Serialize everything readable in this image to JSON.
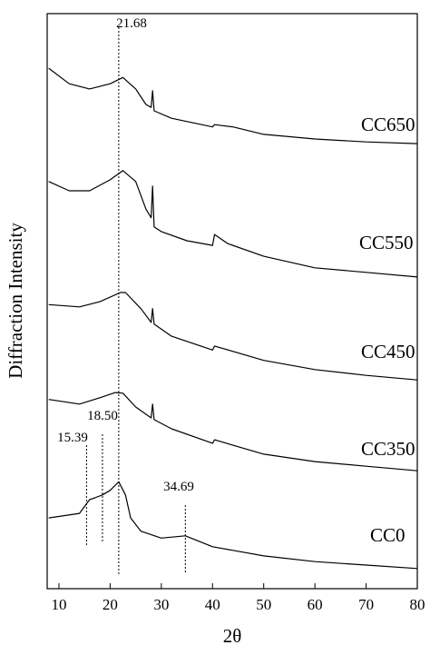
{
  "chart_data": {
    "type": "line",
    "x_label": "2θ",
    "y_label": "Diffraction Intensity",
    "xlim": [
      7.7,
      80
    ],
    "ylim": [
      0,
      100
    ],
    "xticks": [
      10,
      20,
      30,
      40,
      50,
      60,
      70,
      80
    ],
    "color": "#000000",
    "series": [
      {
        "name": "CC650",
        "x": [
          8,
          12,
          16,
          20,
          22.5,
          25,
          27,
          28,
          28.3,
          28.6,
          32,
          40,
          40.4,
          44,
          50,
          60,
          70,
          80
        ],
        "values": [
          90.5,
          87.8,
          86.9,
          87.8,
          88.9,
          86.9,
          84.2,
          83.7,
          86.6,
          83.1,
          81.8,
          80.3,
          80.7,
          80.3,
          79.0,
          78.2,
          77.7,
          77.4
        ]
      },
      {
        "name": "CC550",
        "x": [
          8,
          12,
          16,
          20,
          22.5,
          25,
          27,
          28,
          28.3,
          28.6,
          30,
          35,
          40,
          40.4,
          43,
          50,
          60,
          70,
          80
        ],
        "values": [
          70.8,
          69.2,
          69.2,
          71.1,
          72.7,
          70.8,
          66.0,
          64.5,
          70.0,
          62.9,
          62.1,
          60.5,
          59.7,
          61.6,
          60.0,
          57.8,
          55.8,
          55.0,
          54.2
        ]
      },
      {
        "name": "CC450",
        "x": [
          8,
          14,
          18,
          22,
          23,
          26,
          28,
          28.3,
          28.6,
          32,
          40,
          40.4,
          50,
          60,
          70,
          80
        ],
        "values": [
          49.4,
          49.0,
          49.9,
          51.5,
          51.5,
          48.7,
          46.3,
          48.7,
          46.0,
          43.9,
          41.5,
          42.2,
          39.7,
          38.1,
          37.1,
          36.3
        ]
      },
      {
        "name": "CC350",
        "x": [
          8,
          14,
          18,
          21,
          22.5,
          25,
          28,
          28.3,
          28.6,
          32,
          40,
          40.4,
          50,
          60,
          70,
          80
        ],
        "values": [
          32.9,
          32.1,
          33.2,
          34.1,
          34.0,
          31.6,
          29.7,
          32.1,
          29.4,
          27.8,
          25.3,
          25.9,
          23.4,
          22.1,
          21.3,
          20.5
        ]
      },
      {
        "name": "CC0",
        "x": [
          8,
          14,
          16,
          17,
          18.5,
          20,
          21.68,
          23,
          24,
          26,
          30,
          34.69,
          40,
          50,
          60,
          70,
          80
        ],
        "values": [
          12.3,
          13.1,
          15.5,
          15.8,
          16.3,
          17.1,
          18.6,
          16.3,
          12.3,
          10.0,
          8.8,
          9.2,
          7.3,
          5.7,
          4.7,
          4.1,
          3.5
        ]
      }
    ],
    "peak_lines": [
      21.68,
      15.39,
      {
        "value": 18.5,
        "label": "18.50"
      },
      34.69
    ]
  }
}
